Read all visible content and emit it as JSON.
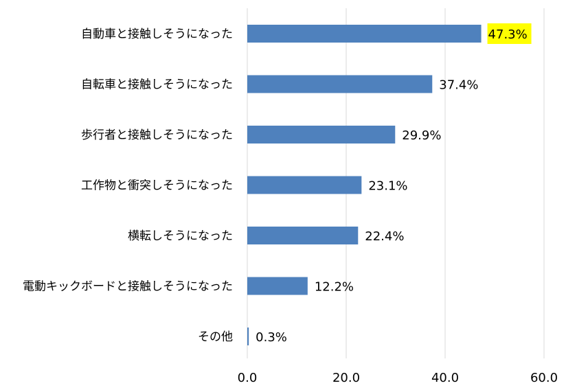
{
  "chart_data": {
    "type": "bar",
    "orientation": "horizontal",
    "categories": [
      "自動車と接触しそうになった",
      "自転車と接触しそうになった",
      "歩行者と接触しそうになった",
      "工作物と衝突しそうになった",
      "横転しそうになった",
      "電動キックボードと接触しそうになった",
      "その他"
    ],
    "values": [
      47.3,
      37.4,
      29.9,
      23.1,
      22.4,
      12.2,
      0.3
    ],
    "value_labels": [
      "47.3%",
      "37.4%",
      "29.9%",
      "23.1%",
      "22.4%",
      "12.2%",
      "0.3%"
    ],
    "highlighted_index": 0,
    "xlim": [
      0,
      60
    ],
    "x_ticks": [
      0,
      20,
      40,
      60
    ],
    "x_tick_labels": [
      "0.0",
      "20.0",
      "40.0",
      "60.0"
    ],
    "grid": "vertical",
    "title": "",
    "xlabel": "",
    "ylabel": "",
    "colors": {
      "bar": "#4f81bd",
      "highlight": "#ffff00",
      "grid": "#d9d9d9"
    }
  }
}
